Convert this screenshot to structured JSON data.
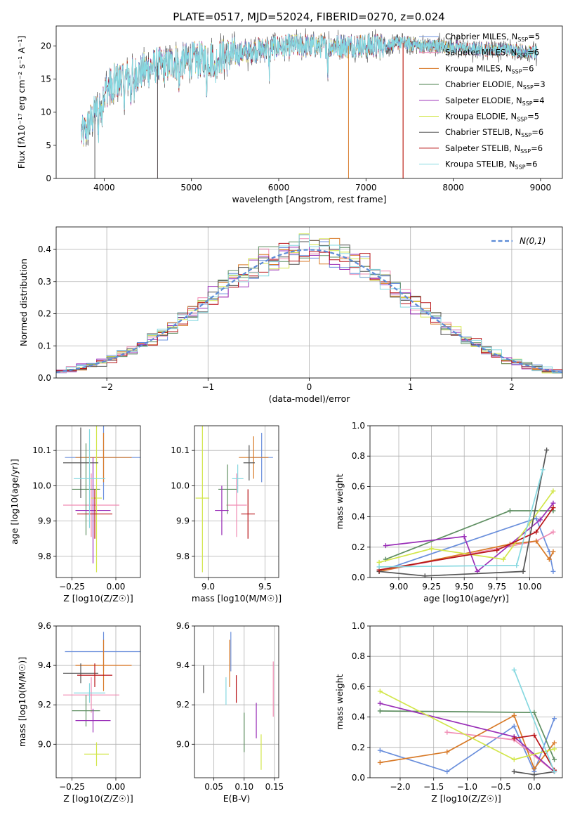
{
  "title": "PLATE=0517, MJD=52024, FIBERID=0270, z=0.024",
  "colors": [
    "#6a8fdc",
    "#f08cb4",
    "#d87a28",
    "#5f8f62",
    "#9a2fb8",
    "#d2e64a",
    "#555555",
    "#b81418",
    "#86d8e0"
  ],
  "legend_spectrum": [
    {
      "name": "Chabrier MILES",
      "nssp": "5"
    },
    {
      "name": "Salpeter MILES",
      "nssp": "6"
    },
    {
      "name": "Kroupa MILES",
      "nssp": "6"
    },
    {
      "name": "Chabrier ELODIE",
      "nssp": "3"
    },
    {
      "name": "Salpeter ELODIE",
      "nssp": "4"
    },
    {
      "name": "Kroupa ELODIE",
      "nssp": "5"
    },
    {
      "name": "Chabrier STELIB",
      "nssp": "6"
    },
    {
      "name": "Salpeter STELIB",
      "nssp": "6"
    },
    {
      "name": "Kroupa STELIB",
      "nssp": "6"
    }
  ],
  "legend_hist": "N(0,1)",
  "chart_data": [
    {
      "id": "spectrum",
      "type": "line",
      "xlabel": "wavelength [Angstrom, rest frame]",
      "ylabel": "Flux [fλ10⁻¹⁷ erg cm⁻² s⁻¹ A⁻¹]",
      "xlim": [
        3450,
        9250
      ],
      "ylim": [
        0,
        23
      ],
      "xticks": [
        4000,
        5000,
        6000,
        7000,
        8000,
        9000
      ],
      "yticks": [
        0,
        5,
        10,
        15,
        20
      ],
      "wave": [
        3740,
        3800,
        3900,
        4000,
        4100,
        4200,
        4300,
        4400,
        4500,
        4600,
        4700,
        4800,
        5000,
        5200,
        5400,
        5600,
        5800,
        6000,
        6200,
        6400,
        6600,
        6800,
        7000,
        7200,
        7400,
        7600,
        7800,
        8000,
        8200,
        8400,
        8600,
        8800,
        8960
      ],
      "flux": [
        6.5,
        7.5,
        10.0,
        13.0,
        14.5,
        15.0,
        15.5,
        16.0,
        16.5,
        17.0,
        17.0,
        17.5,
        17.8,
        18.0,
        18.5,
        19.0,
        19.5,
        19.8,
        20.0,
        20.0,
        20.0,
        20.0,
        20.0,
        20.0,
        20.5,
        20.0,
        20.0,
        19.8,
        19.5,
        19.5,
        19.5,
        19.2,
        19.0
      ]
    },
    {
      "id": "residuals",
      "type": "bar",
      "xlabel": "(data-model)/error",
      "ylabel": "Normed distribution",
      "xlim": [
        -2.5,
        2.5
      ],
      "ylim": [
        0,
        0.47
      ],
      "xticks": [
        -2,
        -1,
        0,
        1,
        2
      ],
      "yticks": [
        0.0,
        0.1,
        0.2,
        0.3,
        0.4
      ],
      "bin_width": 0.1,
      "reference": "normal(0,1)"
    },
    {
      "id": "age_vs_Z",
      "type": "scatter",
      "xlabel": "Z [log10(Z/Z☉)]",
      "ylabel": "age  [log10(age/yr)]",
      "xlim": [
        -0.34,
        0.14
      ],
      "ylim": [
        9.74,
        10.17
      ],
      "xticks": [
        -0.25,
        0.0
      ],
      "yticks": [
        9.8,
        9.9,
        10.0,
        10.1
      ],
      "points": [
        {
          "x": -0.07,
          "y": 10.08,
          "xerr": 0.22,
          "yerr": 0.12
        },
        {
          "x": -0.14,
          "y": 9.945,
          "xerr": 0.16,
          "yerr": 0.09
        },
        {
          "x": -0.07,
          "y": 10.08,
          "xerr": 0.16,
          "yerr": 0.07
        },
        {
          "x": -0.17,
          "y": 9.99,
          "xerr": 0.08,
          "yerr": 0.13
        },
        {
          "x": -0.13,
          "y": 9.93,
          "xerr": 0.1,
          "yerr": 0.15
        },
        {
          "x": -0.11,
          "y": 9.965,
          "xerr": 0.03,
          "yerr": 0.21
        },
        {
          "x": -0.2,
          "y": 10.065,
          "xerr": 0.1,
          "yerr": 0.1
        },
        {
          "x": -0.12,
          "y": 9.92,
          "xerr": 0.1,
          "yerr": 0.07
        },
        {
          "x": -0.15,
          "y": 10.02,
          "xerr": 0.09,
          "yerr": 0.14
        }
      ]
    },
    {
      "id": "age_vs_mass",
      "type": "scatter",
      "xlabel": "mass [log10(M/M☉)]",
      "ylabel": "",
      "xlim": [
        8.88,
        9.62
      ],
      "ylim": [
        9.74,
        10.17
      ],
      "xticks": [
        9.0,
        9.5
      ],
      "yticks": [
        9.8,
        9.9,
        10.0,
        10.1
      ],
      "points": [
        {
          "x": 9.47,
          "y": 10.08,
          "xerr": 0.1,
          "yerr": 0.07
        },
        {
          "x": 9.25,
          "y": 9.945,
          "xerr": 0.09,
          "yerr": 0.09
        },
        {
          "x": 9.4,
          "y": 10.08,
          "xerr": 0.13,
          "yerr": 0.06
        },
        {
          "x": 9.17,
          "y": 9.99,
          "xerr": 0.08,
          "yerr": 0.07
        },
        {
          "x": 9.12,
          "y": 9.93,
          "xerr": 0.06,
          "yerr": 0.07
        },
        {
          "x": 8.95,
          "y": 9.965,
          "xerr": 0.06,
          "yerr": 0.21
        },
        {
          "x": 9.36,
          "y": 10.065,
          "xerr": 0.05,
          "yerr": 0.05
        },
        {
          "x": 9.35,
          "y": 9.92,
          "xerr": 0.06,
          "yerr": 0.07
        },
        {
          "x": 9.26,
          "y": 10.02,
          "xerr": 0.05,
          "yerr": 0.04
        }
      ]
    },
    {
      "id": "mass_weight_vs_age",
      "type": "line",
      "xlabel": "age  [log10(age/yr)]",
      "ylabel": "mass weight",
      "xlim": [
        8.78,
        10.25
      ],
      "ylim": [
        0,
        1
      ],
      "xticks": [
        9.0,
        9.25,
        9.5,
        9.75,
        10.0
      ],
      "yticks": [
        0.0,
        0.2,
        0.4,
        0.6,
        0.8,
        1.0
      ],
      "series": [
        {
          "x": [
            8.85,
            10.05,
            10.15,
            10.18
          ],
          "y": [
            0.04,
            0.39,
            0.17,
            0.04
          ]
        },
        {
          "x": [
            8.85,
            10.05,
            10.18
          ],
          "y": [
            0.04,
            0.24,
            0.3
          ]
        },
        {
          "x": [
            8.85,
            9.85,
            10.05,
            10.15,
            10.18
          ],
          "y": [
            0.04,
            0.22,
            0.24,
            0.12,
            0.17
          ]
        },
        {
          "x": [
            8.9,
            9.85,
            10.18
          ],
          "y": [
            0.12,
            0.44,
            0.44
          ]
        },
        {
          "x": [
            8.9,
            9.5,
            9.6,
            10.08,
            10.18
          ],
          "y": [
            0.21,
            0.27,
            0.04,
            0.38,
            0.49
          ]
        },
        {
          "x": [
            8.85,
            9.25,
            9.8,
            10.18
          ],
          "y": [
            0.1,
            0.19,
            0.12,
            0.57
          ]
        },
        {
          "x": [
            8.85,
            9.2,
            9.95,
            10.13
          ],
          "y": [
            0.04,
            0.01,
            0.04,
            0.84
          ]
        },
        {
          "x": [
            8.85,
            9.75,
            10.05,
            10.18
          ],
          "y": [
            0.05,
            0.18,
            0.3,
            0.46
          ]
        },
        {
          "x": [
            8.85,
            9.9,
            10.1
          ],
          "y": [
            0.07,
            0.08,
            0.71
          ]
        }
      ]
    },
    {
      "id": "mass_vs_Z",
      "type": "scatter",
      "xlabel": "Z [log10(Z/Z☉)]",
      "ylabel": "mass [log10(M/M☉)]",
      "xlim": [
        -0.34,
        0.14
      ],
      "ylim": [
        8.83,
        9.6
      ],
      "xticks": [
        -0.25,
        0.0
      ],
      "yticks": [
        9.0,
        9.2,
        9.4,
        9.6
      ],
      "points": [
        {
          "x": -0.07,
          "y": 9.47,
          "xerr": 0.22,
          "yerr": 0.1
        },
        {
          "x": -0.14,
          "y": 9.25,
          "xerr": 0.16,
          "yerr": 0.09
        },
        {
          "x": -0.07,
          "y": 9.4,
          "xerr": 0.16,
          "yerr": 0.13
        },
        {
          "x": -0.17,
          "y": 9.17,
          "xerr": 0.08,
          "yerr": 0.08
        },
        {
          "x": -0.13,
          "y": 9.12,
          "xerr": 0.1,
          "yerr": 0.06
        },
        {
          "x": -0.11,
          "y": 8.95,
          "xerr": 0.07,
          "yerr": 0.06
        },
        {
          "x": -0.2,
          "y": 9.36,
          "xerr": 0.1,
          "yerr": 0.05
        },
        {
          "x": -0.12,
          "y": 9.35,
          "xerr": 0.1,
          "yerr": 0.06
        },
        {
          "x": -0.15,
          "y": 9.26,
          "xerr": 0.09,
          "yerr": 0.05
        }
      ]
    },
    {
      "id": "mass_vs_EBV",
      "type": "scatter",
      "xlabel": "E(B-V)",
      "ylabel": "",
      "xlim": [
        0.018,
        0.157
      ],
      "ylim": [
        8.83,
        9.6
      ],
      "xticks": [
        0.05,
        0.1,
        0.15
      ],
      "yticks": [
        9.0,
        9.2,
        9.4,
        9.6
      ],
      "points": [
        {
          "x": 0.078,
          "y": 9.47,
          "xerr": 0,
          "yerr": 0.1
        },
        {
          "x": 0.148,
          "y": 9.28,
          "xerr": 0,
          "yerr": 0.14
        },
        {
          "x": 0.076,
          "y": 9.41,
          "xerr": 0,
          "yerr": 0.12
        },
        {
          "x": 0.1,
          "y": 9.06,
          "xerr": 0,
          "yerr": 0.1
        },
        {
          "x": 0.12,
          "y": 9.12,
          "xerr": 0,
          "yerr": 0.09
        },
        {
          "x": 0.128,
          "y": 8.96,
          "xerr": 0,
          "yerr": 0.09
        },
        {
          "x": 0.033,
          "y": 9.33,
          "xerr": 0,
          "yerr": 0.07
        },
        {
          "x": 0.087,
          "y": 9.28,
          "xerr": 0,
          "yerr": 0.07
        },
        {
          "x": 0.07,
          "y": 9.27,
          "xerr": 0,
          "yerr": 0.07
        }
      ]
    },
    {
      "id": "mass_weight_vs_Z",
      "type": "line",
      "xlabel": "Z [log10(Z/Z☉)]",
      "ylabel": "mass weight",
      "xlim": [
        -2.45,
        0.42
      ],
      "ylim": [
        0,
        1
      ],
      "xticks": [
        -2.0,
        -1.5,
        -1.0,
        -0.5,
        0.0
      ],
      "yticks": [
        0.0,
        0.2,
        0.4,
        0.6,
        0.8,
        1.0
      ],
      "series": [
        {
          "x": [
            -2.3,
            -1.3,
            -0.3,
            0.0,
            0.3
          ],
          "y": [
            0.18,
            0.04,
            0.34,
            0.04,
            0.39
          ]
        },
        {
          "x": [
            -1.3,
            -0.3,
            0.3
          ],
          "y": [
            0.3,
            0.25,
            0.04
          ]
        },
        {
          "x": [
            -2.3,
            -1.3,
            -0.3,
            0.0,
            0.3
          ],
          "y": [
            0.1,
            0.17,
            0.41,
            0.06,
            0.23
          ]
        },
        {
          "x": [
            -2.3,
            0.0,
            0.3
          ],
          "y": [
            0.44,
            0.43,
            0.12
          ]
        },
        {
          "x": [
            -2.3,
            -0.3,
            0.3
          ],
          "y": [
            0.49,
            0.27,
            0.04
          ]
        },
        {
          "x": [
            -2.3,
            -0.3,
            0.3
          ],
          "y": [
            0.57,
            0.12,
            0.19
          ]
        },
        {
          "x": [
            -0.3,
            0.0,
            0.3
          ],
          "y": [
            0.04,
            0.02,
            0.04
          ]
        },
        {
          "x": [
            -0.3,
            0.0,
            0.3
          ],
          "y": [
            0.26,
            0.28,
            0.05
          ]
        },
        {
          "x": [
            -0.3,
            0.3
          ],
          "y": [
            0.71,
            0.04
          ]
        }
      ]
    }
  ]
}
